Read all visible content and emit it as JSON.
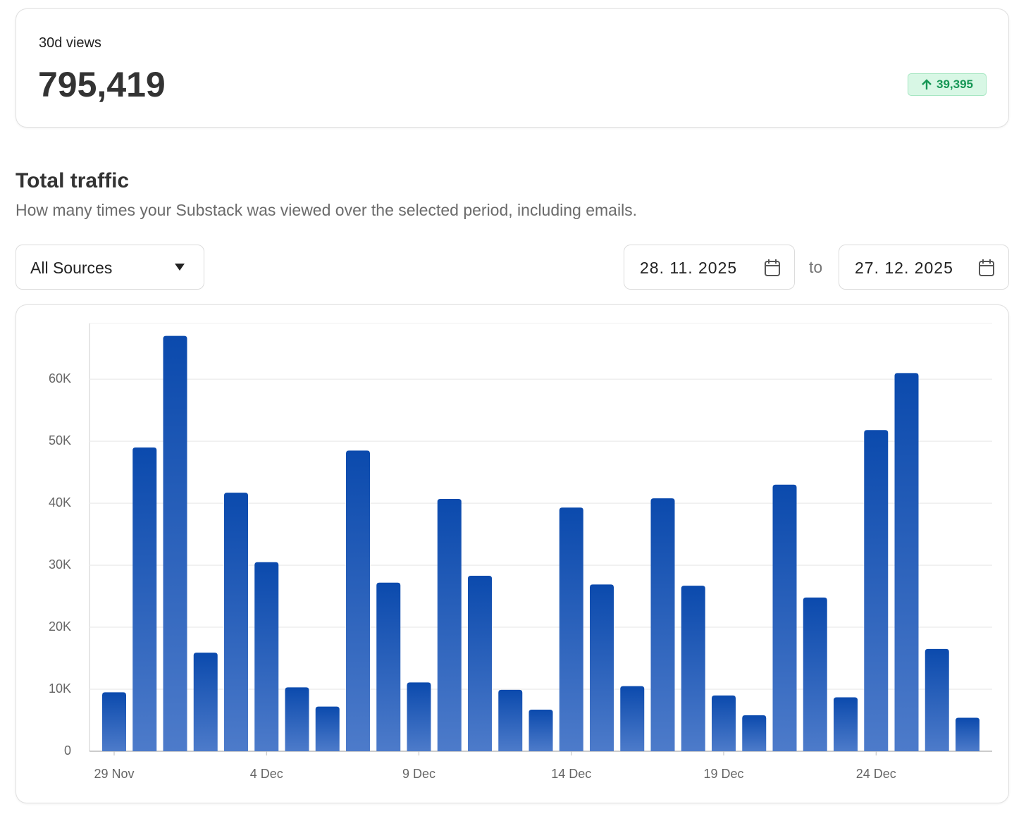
{
  "header": {
    "label": "30d views",
    "value": "795,419",
    "change": "39,395"
  },
  "section": {
    "title": "Total traffic",
    "subtitle": "How many times your Substack was viewed over the selected period, including emails."
  },
  "controls": {
    "source": "All Sources",
    "from": "28. 11. 2025",
    "to_label": "to",
    "to": "27. 12. 2025"
  },
  "chart_data": {
    "type": "bar",
    "color": "#0b4aad",
    "categories": [
      "29 Nov",
      null,
      null,
      null,
      null,
      "4 Dec",
      null,
      null,
      null,
      null,
      "9 Dec",
      null,
      null,
      null,
      null,
      "14 Dec",
      null,
      null,
      null,
      null,
      "19 Dec",
      null,
      null,
      null,
      null,
      "24 Dec",
      null,
      null,
      null
    ],
    "values": [
      9500,
      49000,
      67000,
      15900,
      41700,
      30500,
      10300,
      7200,
      48500,
      27200,
      11100,
      40700,
      28300,
      9900,
      6700,
      39300,
      26900,
      10500,
      40800,
      26700,
      9000,
      5800,
      43000,
      24800,
      8700,
      51800,
      61000,
      16500,
      5400
    ],
    "ylim": [
      0,
      69000
    ],
    "yticks": [
      0,
      {
        "value": 10000,
        "label": "10K"
      },
      {
        "value": 20000,
        "label": "20K"
      },
      {
        "value": 30000,
        "label": "30K"
      },
      {
        "value": 40000,
        "label": "40K"
      },
      {
        "value": 50000,
        "label": "50K"
      },
      {
        "value": 60000,
        "label": "60K"
      }
    ],
    "grid": true
  }
}
